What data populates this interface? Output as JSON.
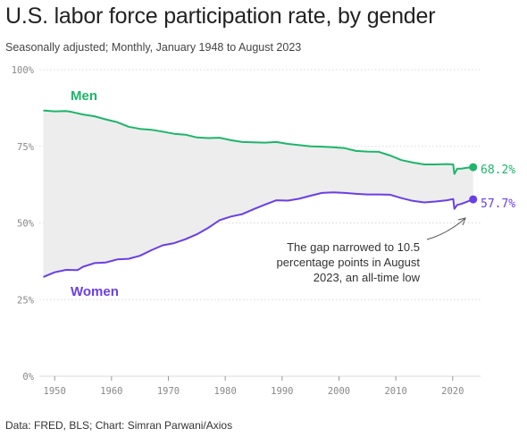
{
  "header": {
    "title": "U.S. labor force participation rate, by gender",
    "subtitle": "Seasonally adjusted; Monthly, January 1948 to August 2023"
  },
  "footer": {
    "source": "Data: FRED, BLS; Chart: Simran Parwani/Axios"
  },
  "colors": {
    "men": "#1db56a",
    "women": "#6a3fe6",
    "gap_fill": "#ededed",
    "grid": "#d9d9d9",
    "axis_text": "#888888"
  },
  "chart_data": {
    "type": "line",
    "title": "U.S. labor force participation rate, by gender",
    "subtitle": "Seasonally adjusted; Monthly, January 1948 to August 2023",
    "ylim": [
      0,
      100
    ],
    "xlim": [
      1947.3,
      2024.9
    ],
    "y_ticks": [
      "0%",
      "25%",
      "50%",
      "75%",
      "100%"
    ],
    "y_tick_values": [
      0,
      25,
      50,
      75,
      100
    ],
    "x_ticks": [
      "1950",
      "1960",
      "1970",
      "1980",
      "1990",
      "2000",
      "2010",
      "2020"
    ],
    "x_tick_values": [
      1950,
      1960,
      1970,
      1980,
      1990,
      2000,
      2010,
      2020
    ],
    "grid": true,
    "series": [
      {
        "name": "Men",
        "color": "#1db56a",
        "end_label": "68.2%",
        "points": [
          [
            1948,
            86.7
          ],
          [
            1950,
            86.4
          ],
          [
            1952,
            86.5
          ],
          [
            1953,
            86.2
          ],
          [
            1955,
            85.4
          ],
          [
            1957,
            84.8
          ],
          [
            1959,
            83.8
          ],
          [
            1961,
            82.9
          ],
          [
            1963,
            81.4
          ],
          [
            1965,
            80.7
          ],
          [
            1967,
            80.4
          ],
          [
            1969,
            79.8
          ],
          [
            1971,
            79.1
          ],
          [
            1973,
            78.8
          ],
          [
            1975,
            77.9
          ],
          [
            1977,
            77.7
          ],
          [
            1979,
            77.8
          ],
          [
            1981,
            77.0
          ],
          [
            1983,
            76.4
          ],
          [
            1985,
            76.3
          ],
          [
            1987,
            76.2
          ],
          [
            1989,
            76.4
          ],
          [
            1991,
            75.8
          ],
          [
            1993,
            75.4
          ],
          [
            1995,
            75.0
          ],
          [
            1997,
            74.9
          ],
          [
            1999,
            74.7
          ],
          [
            2001,
            74.4
          ],
          [
            2003,
            73.5
          ],
          [
            2005,
            73.3
          ],
          [
            2007,
            73.2
          ],
          [
            2009,
            72.0
          ],
          [
            2011,
            70.5
          ],
          [
            2013,
            69.7
          ],
          [
            2015,
            69.1
          ],
          [
            2017,
            69.1
          ],
          [
            2019,
            69.2
          ],
          [
            2020.1,
            69.1
          ],
          [
            2020.3,
            66.0
          ],
          [
            2020.8,
            67.7
          ],
          [
            2021.5,
            67.7
          ],
          [
            2022.5,
            68.0
          ],
          [
            2023.6,
            68.2
          ]
        ]
      },
      {
        "name": "Women",
        "color": "#6a3fe6",
        "end_label": "57.7%",
        "points": [
          [
            1948,
            32.4
          ],
          [
            1950,
            33.9
          ],
          [
            1952,
            34.7
          ],
          [
            1954,
            34.6
          ],
          [
            1955,
            35.7
          ],
          [
            1957,
            36.9
          ],
          [
            1959,
            37.1
          ],
          [
            1961,
            38.1
          ],
          [
            1963,
            38.3
          ],
          [
            1965,
            39.3
          ],
          [
            1967,
            41.1
          ],
          [
            1969,
            42.7
          ],
          [
            1971,
            43.4
          ],
          [
            1973,
            44.7
          ],
          [
            1975,
            46.3
          ],
          [
            1977,
            48.4
          ],
          [
            1979,
            50.9
          ],
          [
            1981,
            52.1
          ],
          [
            1983,
            52.9
          ],
          [
            1985,
            54.5
          ],
          [
            1987,
            56.0
          ],
          [
            1989,
            57.4
          ],
          [
            1991,
            57.3
          ],
          [
            1993,
            57.9
          ],
          [
            1995,
            58.9
          ],
          [
            1997,
            59.8
          ],
          [
            1999,
            60.0
          ],
          [
            2001,
            59.8
          ],
          [
            2003,
            59.5
          ],
          [
            2005,
            59.3
          ],
          [
            2007,
            59.3
          ],
          [
            2009,
            59.2
          ],
          [
            2011,
            58.1
          ],
          [
            2013,
            57.2
          ],
          [
            2015,
            56.7
          ],
          [
            2017,
            57.0
          ],
          [
            2019,
            57.4
          ],
          [
            2020.1,
            57.8
          ],
          [
            2020.3,
            54.6
          ],
          [
            2020.8,
            55.9
          ],
          [
            2021.5,
            56.2
          ],
          [
            2022.5,
            56.9
          ],
          [
            2023.6,
            57.7
          ]
        ]
      }
    ],
    "annotation": {
      "lines": [
        "The gap narrowed to 10.5",
        "percentage points in August",
        "2023, an all-time low"
      ]
    }
  }
}
